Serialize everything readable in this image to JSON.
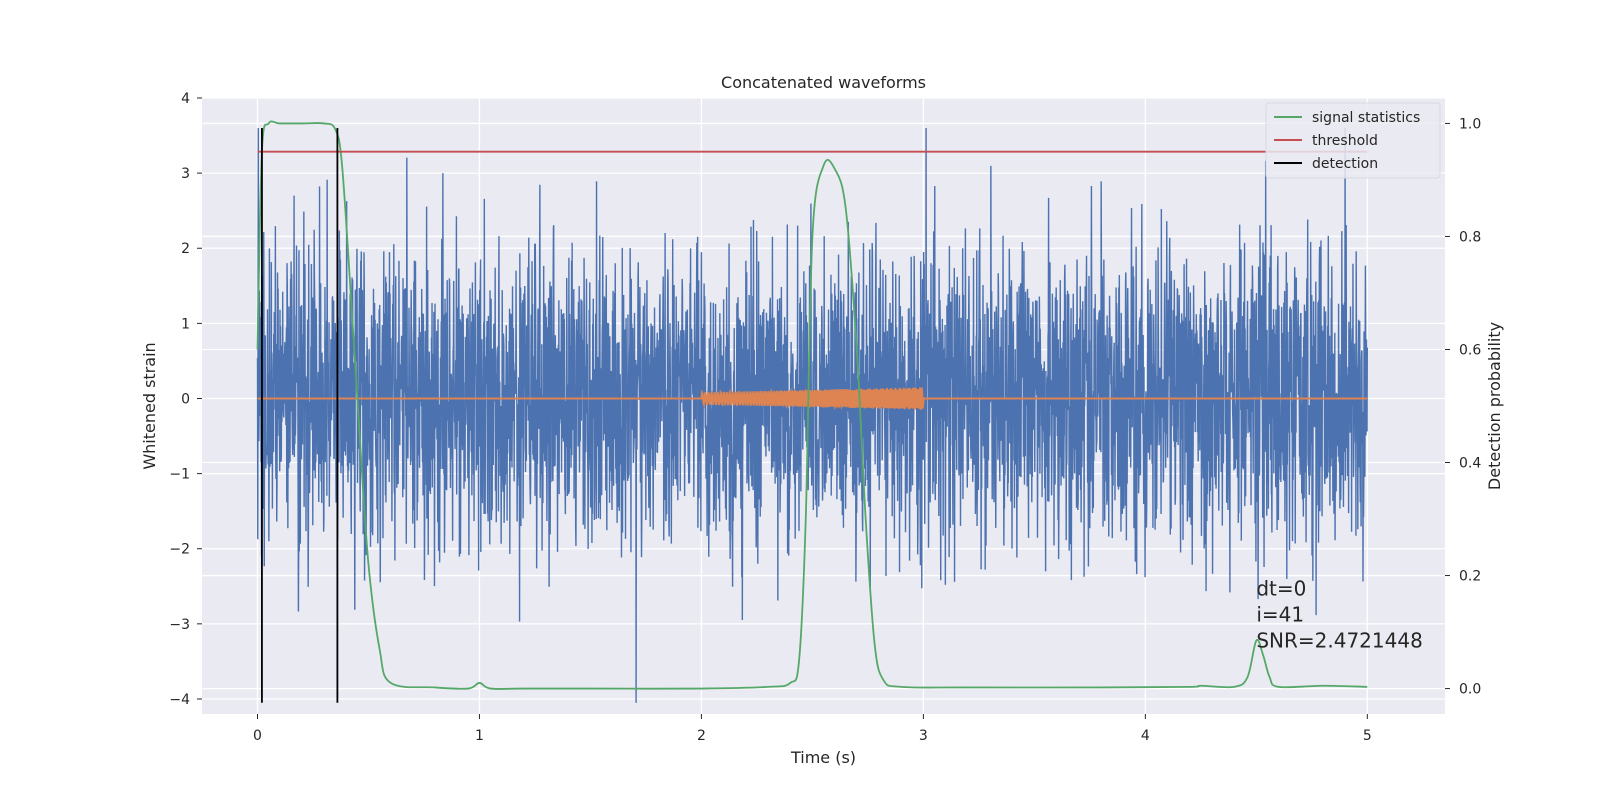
{
  "chart_data": {
    "type": "line",
    "title": "Concatenated waveforms",
    "xlabel": "Time (s)",
    "ylabel": "Whitened strain",
    "y2label": "Detection probability",
    "xlim": [
      -0.25,
      5.35
    ],
    "ylim": [
      -4.2,
      4.0
    ],
    "y2lim": [
      -0.045,
      1.045
    ],
    "x_ticks": [
      0,
      1,
      2,
      3,
      4,
      5
    ],
    "y_ticks": [
      -4,
      -3,
      -2,
      -1,
      0,
      1,
      2,
      3,
      4
    ],
    "y2_ticks": [
      0.0,
      0.2,
      0.4,
      0.6,
      0.8,
      1.0
    ],
    "grid": true,
    "legend_position": "top-right",
    "series": [
      {
        "kind": "noise",
        "color": "#4c72b0",
        "x_range": [
          0,
          5
        ],
        "samples": 4096,
        "seed": 41,
        "std": 0.95,
        "min": -4.05,
        "max": 3.6,
        "axis": "left"
      },
      {
        "kind": "chirp",
        "color": "#dd8452",
        "x_range": [
          0,
          5
        ],
        "active_range": [
          2,
          3
        ],
        "amplitude_start": 0.08,
        "amplitude_end": 0.15,
        "cycles": 70,
        "axis": "left"
      },
      {
        "name": "signal statistics",
        "color": "#55a868",
        "axis": "right",
        "x": [
          0.0,
          0.02,
          0.05,
          0.1,
          0.2,
          0.3,
          0.35,
          0.38,
          0.42,
          0.46,
          0.5,
          0.55,
          0.6,
          0.8,
          0.95,
          1.0,
          1.05,
          1.2,
          1.5,
          2.0,
          2.3,
          2.4,
          2.44,
          2.47,
          2.5,
          2.55,
          2.6,
          2.65,
          2.7,
          2.74,
          2.78,
          2.82,
          2.9,
          3.2,
          3.8,
          4.2,
          4.25,
          4.4,
          4.46,
          4.5,
          4.53,
          4.56,
          4.6,
          4.8,
          5.0
        ],
        "values": [
          0.6,
          0.95,
          1.0,
          1.0,
          1.0,
          1.0,
          0.99,
          0.93,
          0.7,
          0.45,
          0.22,
          0.07,
          0.01,
          0.002,
          0.0,
          0.01,
          0.0,
          0.0,
          0.0,
          0.0,
          0.003,
          0.01,
          0.05,
          0.3,
          0.8,
          0.925,
          0.92,
          0.85,
          0.6,
          0.3,
          0.08,
          0.015,
          0.003,
          0.002,
          0.002,
          0.003,
          0.005,
          0.003,
          0.02,
          0.085,
          0.06,
          0.02,
          0.003,
          0.005,
          0.003
        ]
      },
      {
        "name": "threshold",
        "color": "#c44e52",
        "axis": "right",
        "x": [
          0,
          5
        ],
        "values": [
          0.95,
          0.95
        ]
      },
      {
        "name": "detection",
        "color": "#000000",
        "axis": "left",
        "kind": "vlines",
        "x": [
          0.02,
          0.36
        ],
        "y_range": [
          -4.05,
          3.6
        ]
      }
    ],
    "annotation": {
      "lines": [
        "dt=0",
        "i=41",
        "SNR=2.4721448"
      ],
      "x": 4.5,
      "y": 0.115
    }
  }
}
